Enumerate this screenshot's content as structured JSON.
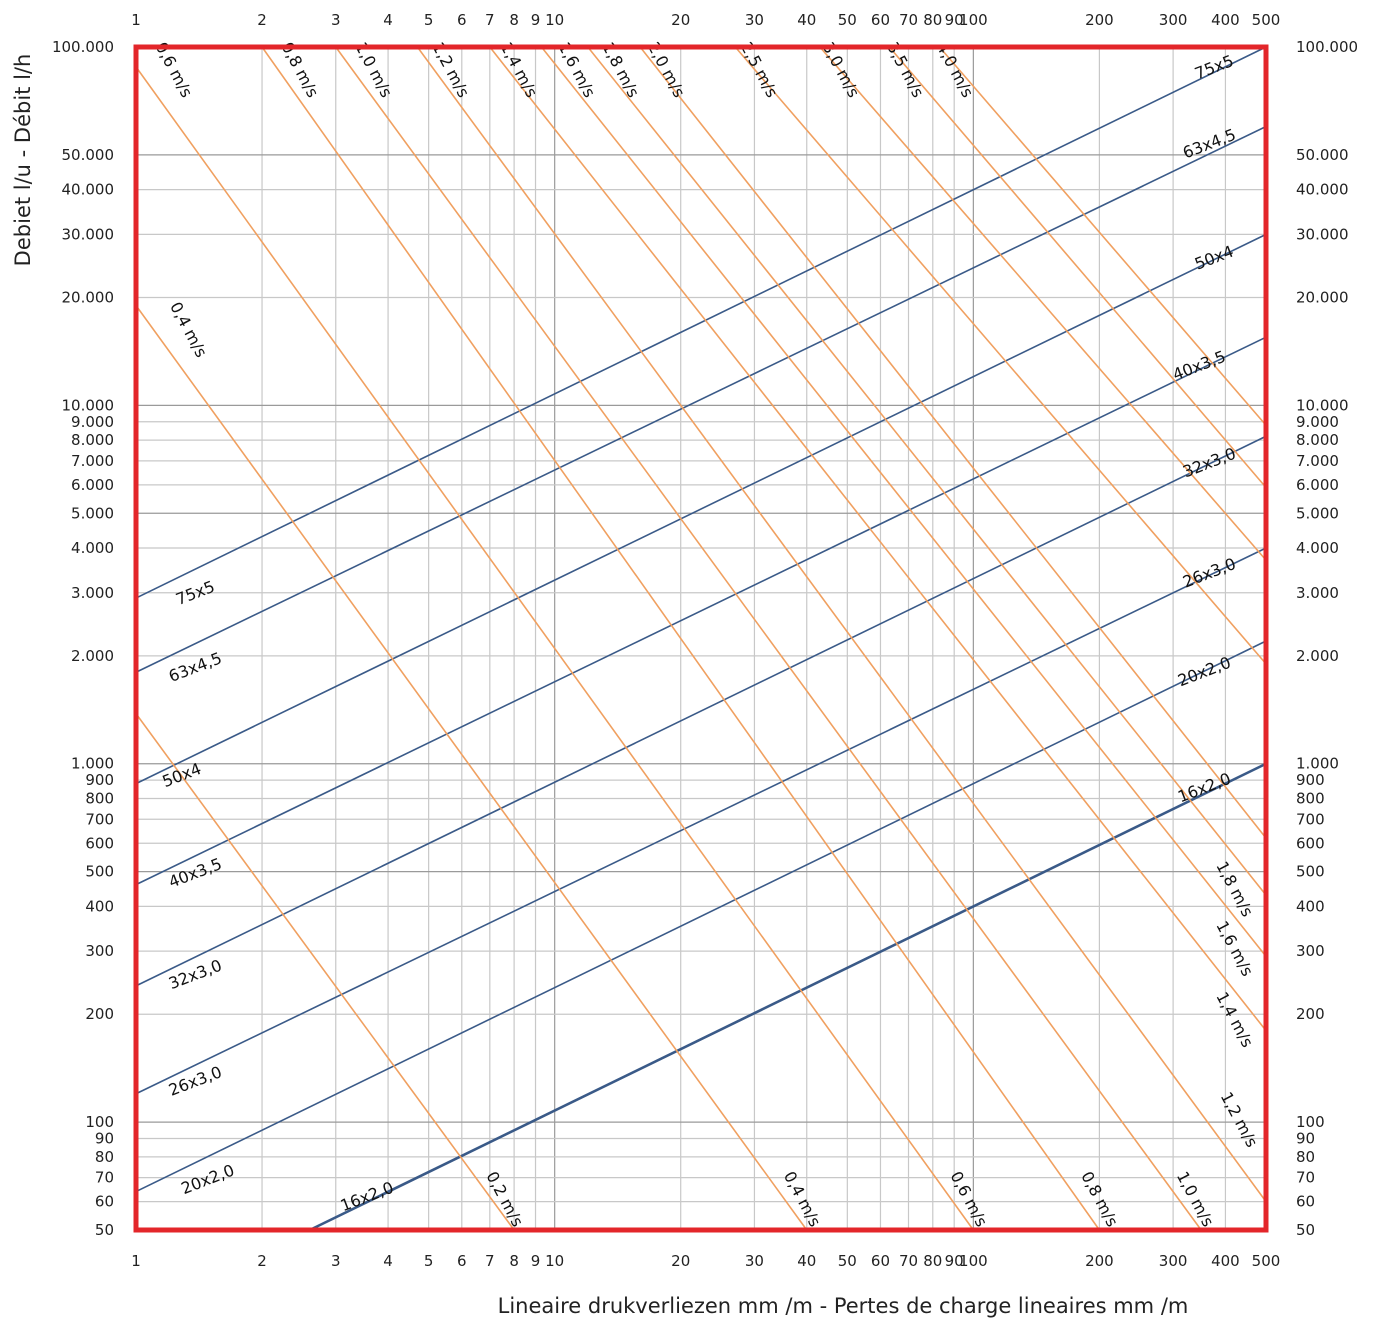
{
  "chart_data": {
    "type": "line",
    "xscale": "log",
    "yscale": "log",
    "xlim": [
      1,
      500
    ],
    "ylim": [
      50,
      100000
    ],
    "xlabel": "Lineaire drukverliezen mm /m - Pertes de charge lineaires mm /m",
    "ylabel": "Debiet  l/u - Débit l/h",
    "x_ticks": [
      {
        "v": 1,
        "t": "1"
      },
      {
        "v": 2,
        "t": "2"
      },
      {
        "v": 3,
        "t": "3"
      },
      {
        "v": 4,
        "t": "4"
      },
      {
        "v": 5,
        "t": "5"
      },
      {
        "v": 6,
        "t": "6"
      },
      {
        "v": 7,
        "t": "7"
      },
      {
        "v": 8,
        "t": "8"
      },
      {
        "v": 9,
        "t": "9"
      },
      {
        "v": 10,
        "t": "10"
      },
      {
        "v": 20,
        "t": "20"
      },
      {
        "v": 30,
        "t": "30"
      },
      {
        "v": 40,
        "t": "40"
      },
      {
        "v": 50,
        "t": "50"
      },
      {
        "v": 60,
        "t": "60"
      },
      {
        "v": 70,
        "t": "70"
      },
      {
        "v": 80,
        "t": "80"
      },
      {
        "v": 90,
        "t": "90"
      },
      {
        "v": 100,
        "t": "100"
      },
      {
        "v": 200,
        "t": "200"
      },
      {
        "v": 300,
        "t": "300"
      },
      {
        "v": 400,
        "t": "400"
      },
      {
        "v": 500,
        "t": "500"
      }
    ],
    "y_ticks": [
      {
        "v": 50,
        "t": "50"
      },
      {
        "v": 60,
        "t": "60"
      },
      {
        "v": 70,
        "t": "70"
      },
      {
        "v": 80,
        "t": "80"
      },
      {
        "v": 90,
        "t": "90"
      },
      {
        "v": 100,
        "t": "100"
      },
      {
        "v": 200,
        "t": "200"
      },
      {
        "v": 300,
        "t": "300"
      },
      {
        "v": 400,
        "t": "400"
      },
      {
        "v": 500,
        "t": "500"
      },
      {
        "v": 600,
        "t": "600"
      },
      {
        "v": 700,
        "t": "700"
      },
      {
        "v": 800,
        "t": "800"
      },
      {
        "v": 900,
        "t": "900"
      },
      {
        "v": 1000,
        "t": "1.000"
      },
      {
        "v": 2000,
        "t": "2.000"
      },
      {
        "v": 3000,
        "t": "3.000"
      },
      {
        "v": 4000,
        "t": "4.000"
      },
      {
        "v": 5000,
        "t": "5.000"
      },
      {
        "v": 6000,
        "t": "6.000"
      },
      {
        "v": 7000,
        "t": "7.000"
      },
      {
        "v": 8000,
        "t": "8.000"
      },
      {
        "v": 9000,
        "t": "9.000"
      },
      {
        "v": 10000,
        "t": "10.000"
      },
      {
        "v": 20000,
        "t": "20.000"
      },
      {
        "v": 30000,
        "t": "30.000"
      },
      {
        "v": 40000,
        "t": "40.000"
      },
      {
        "v": 50000,
        "t": "50.000"
      },
      {
        "v": 100000,
        "t": "100.000"
      }
    ],
    "pipe_series": [
      {
        "name": "75x5",
        "points": [
          [
            1,
            2900
          ],
          [
            500,
            100000
          ]
        ]
      },
      {
        "name": "63x4,5",
        "points": [
          [
            1,
            1800
          ],
          [
            500,
            60000
          ]
        ]
      },
      {
        "name": "50x4",
        "points": [
          [
            1,
            880
          ],
          [
            500,
            30000
          ]
        ]
      },
      {
        "name": "40x3,5",
        "points": [
          [
            1,
            460
          ],
          [
            500,
            15500
          ]
        ]
      },
      {
        "name": "32x3,0",
        "points": [
          [
            1,
            240
          ],
          [
            500,
            8200
          ]
        ]
      },
      {
        "name": "26x3,0",
        "points": [
          [
            1,
            120
          ],
          [
            500,
            4000
          ]
        ]
      },
      {
        "name": "20x2,0",
        "points": [
          [
            1,
            64
          ],
          [
            500,
            2200
          ]
        ]
      },
      {
        "name": "16x2,0",
        "points": [
          [
            2.6,
            50
          ],
          [
            500,
            1000
          ]
        ]
      }
    ],
    "velocity_series": [
      {
        "name": "0,2 m/s",
        "points": [
          [
            1,
            1380
          ],
          [
            8.0,
            50
          ]
        ]
      },
      {
        "name": "0,4 m/s",
        "points": [
          [
            1,
            19000
          ],
          [
            40,
            50
          ]
        ]
      },
      {
        "name": "0,6 m/s",
        "points": [
          [
            1,
            88000
          ],
          [
            100,
            50
          ]
        ]
      },
      {
        "name": "0,8 m/s",
        "points": [
          [
            2,
            100000
          ],
          [
            200,
            50
          ]
        ]
      },
      {
        "name": "1,0 m/s",
        "points": [
          [
            3,
            100000
          ],
          [
            350,
            50
          ]
        ]
      },
      {
        "name": "1,2 m/s",
        "points": [
          [
            4.7,
            100000
          ],
          [
            500,
            60
          ]
        ]
      },
      {
        "name": "1,4 m/s",
        "points": [
          [
            7.0,
            100000
          ],
          [
            500,
            180
          ]
        ]
      },
      {
        "name": "1,6 m/s",
        "points": [
          [
            9.3,
            100000
          ],
          [
            500,
            290
          ]
        ]
      },
      {
        "name": "1,8 m/s",
        "points": [
          [
            12,
            100000
          ],
          [
            500,
            430
          ]
        ]
      },
      {
        "name": "2,0 m/s",
        "points": [
          [
            16,
            100000
          ],
          [
            500,
            620
          ]
        ]
      },
      {
        "name": "2,5 m/s",
        "points": [
          [
            27,
            100000
          ],
          [
            500,
            1900
          ]
        ]
      },
      {
        "name": "3,0 m/s",
        "points": [
          [
            43,
            100000
          ],
          [
            500,
            3700
          ]
        ]
      },
      {
        "name": "3,5 m/s",
        "points": [
          [
            63,
            100000
          ],
          [
            500,
            5900
          ]
        ]
      },
      {
        "name": "4,0 m/s",
        "points": [
          [
            83,
            100000
          ],
          [
            500,
            8800
          ]
        ]
      }
    ],
    "pipe_labels_left": [
      {
        "text": "75x5",
        "x": 1.4,
        "y": 2900
      },
      {
        "text": "63x4,5",
        "x": 1.4,
        "y": 1800
      },
      {
        "text": "50x4",
        "x": 1.3,
        "y": 900
      },
      {
        "text": "40x3,5",
        "x": 1.4,
        "y": 480
      },
      {
        "text": "32x3,0",
        "x": 1.4,
        "y": 250
      },
      {
        "text": "26x3,0",
        "x": 1.4,
        "y": 126
      },
      {
        "text": "20x2,0",
        "x": 1.5,
        "y": 67
      },
      {
        "text": "16x2,0",
        "x": 3.6,
        "y": 60
      }
    ],
    "pipe_labels_right": [
      {
        "text": "75x5",
        "x": 380,
        "y": 85000
      },
      {
        "text": "63x4,5",
        "x": 370,
        "y": 52000
      },
      {
        "text": "50x4",
        "x": 380,
        "y": 25000
      },
      {
        "text": "40x3,5",
        "x": 350,
        "y": 12500
      },
      {
        "text": "32x3,0",
        "x": 370,
        "y": 6700
      },
      {
        "text": "26x3,0",
        "x": 370,
        "y": 3300
      },
      {
        "text": "20x2,0",
        "x": 360,
        "y": 1750
      },
      {
        "text": "16x2,0",
        "x": 360,
        "y": 830
      }
    ],
    "velocity_labels_top": [
      {
        "text": "0,6 m/s",
        "x": 1.2,
        "y": 85000
      },
      {
        "text": "0,8 m/s",
        "x": 2.4,
        "y": 85000
      },
      {
        "text": "1,0 m/s",
        "x": 3.6,
        "y": 85000
      },
      {
        "text": "1,2 m/s",
        "x": 5.5,
        "y": 85000
      },
      {
        "text": "1,4 m/s",
        "x": 8.0,
        "y": 85000
      },
      {
        "text": "1,6 m/s",
        "x": 11,
        "y": 85000
      },
      {
        "text": "1,8 m/s",
        "x": 14,
        "y": 85000
      },
      {
        "text": "2,0 m/s",
        "x": 18,
        "y": 85000
      },
      {
        "text": "2,5 m/s",
        "x": 30,
        "y": 85000
      },
      {
        "text": "3,0 m/s",
        "x": 47,
        "y": 85000
      },
      {
        "text": "3,5 m/s",
        "x": 67,
        "y": 85000
      },
      {
        "text": "4,0 m/s",
        "x": 88,
        "y": 85000
      },
      {
        "text": "0,4 m/s",
        "x": 1.3,
        "y": 16000
      }
    ],
    "velocity_labels_bottom": [
      {
        "text": "0,2 m/s",
        "x": 7.4,
        "y": 60
      },
      {
        "text": "0,4 m/s",
        "x": 38,
        "y": 60
      },
      {
        "text": "0,6 m/s",
        "x": 95,
        "y": 60
      },
      {
        "text": "0,8 m/s",
        "x": 195,
        "y": 60
      },
      {
        "text": "1,0 m/s",
        "x": 330,
        "y": 60
      },
      {
        "text": "1,2 m/s",
        "x": 420,
        "y": 100
      },
      {
        "text": "1,4 m/s",
        "x": 410,
        "y": 190
      },
      {
        "text": "1,6 m/s",
        "x": 410,
        "y": 300
      },
      {
        "text": "1,8 m/s",
        "x": 410,
        "y": 440
      }
    ],
    "colors": {
      "frame": "#e3262a",
      "grid": "#c8c8c8",
      "grid_major": "#9a9a9a",
      "pipe_line": "#3a5a88",
      "velocity_line": "#f0a060"
    }
  }
}
